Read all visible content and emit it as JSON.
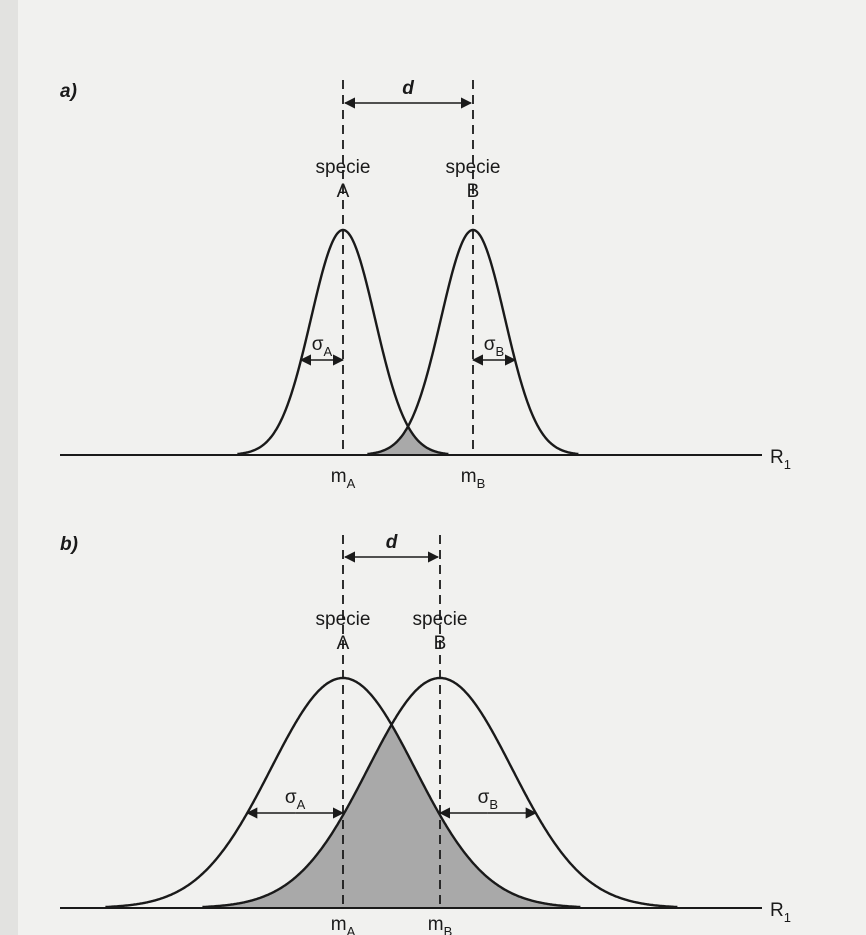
{
  "panels": [
    {
      "label": "a)",
      "distance": "d",
      "axis": "R",
      "axis_sub": "1",
      "species": [
        {
          "word": "specie",
          "letter": "A",
          "sigma": "σ",
          "sigma_sub": "A",
          "mean": "m",
          "mean_sub": "A"
        },
        {
          "word": "specie",
          "letter": "B",
          "sigma": "σ",
          "sigma_sub": "B",
          "mean": "m",
          "mean_sub": "B"
        }
      ]
    },
    {
      "label": "b)",
      "distance": "d",
      "axis": "R",
      "axis_sub": "1",
      "species": [
        {
          "word": "specie",
          "letter": "A",
          "sigma": "σ",
          "sigma_sub": "A",
          "mean": "m",
          "mean_sub": "A"
        },
        {
          "word": "specie",
          "letter": "B",
          "sigma": "σ",
          "sigma_sub": "B",
          "mean": "m",
          "mean_sub": "B"
        }
      ]
    }
  ]
}
